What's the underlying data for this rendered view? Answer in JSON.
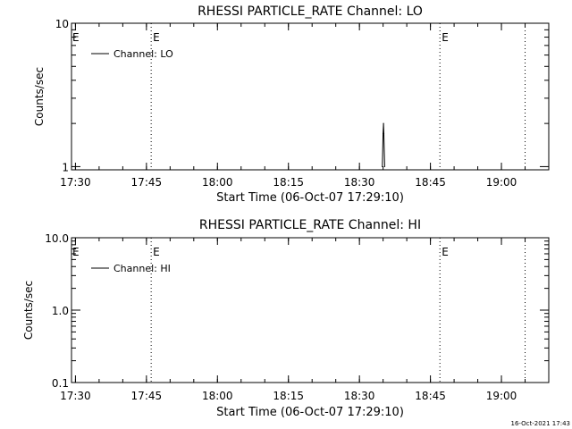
{
  "chart_data": [
    {
      "type": "line",
      "title": "RHESSI PARTICLE_RATE Channel: LO",
      "xlabel": "Start Time (06-Oct-07 17:29:10)",
      "ylabel": "Counts/sec",
      "yscale": "log",
      "ylim": [
        0.95,
        10
      ],
      "y_ticks": [
        {
          "value": 10,
          "label": "10"
        },
        {
          "value": 1,
          "label": "1"
        }
      ],
      "legend": {
        "placement": "top-left",
        "label": "Channel: LO"
      },
      "event_markers": [
        {
          "time": "17:46",
          "label": "E"
        },
        {
          "time": "18:47",
          "label": "E"
        },
        {
          "time": "19:05",
          "label": ""
        }
      ],
      "series": [
        {
          "name": "Channel: LO",
          "x": [
            "18:34:50",
            "18:35:00",
            "18:35:05",
            "18:35:10",
            "18:35:20"
          ],
          "values": [
            1,
            1.7,
            2.0,
            1.7,
            1
          ]
        }
      ]
    },
    {
      "type": "line",
      "title": "RHESSI PARTICLE_RATE Channel: HI",
      "xlabel": "Start Time (06-Oct-07 17:29:10)",
      "ylabel": "Counts/sec",
      "yscale": "log",
      "ylim": [
        0.1,
        10
      ],
      "y_ticks": [
        {
          "value": 10,
          "label": "10.0"
        },
        {
          "value": 1,
          "label": "1.0"
        },
        {
          "value": 0.1,
          "label": "0.1"
        }
      ],
      "legend": {
        "placement": "top-left",
        "label": "Channel: HI"
      },
      "event_markers": [
        {
          "time": "17:46",
          "label": "E"
        },
        {
          "time": "18:47",
          "label": "E"
        },
        {
          "time": "19:05",
          "label": ""
        }
      ],
      "series": [
        {
          "name": "Channel: HI",
          "x": [],
          "values": []
        }
      ]
    }
  ],
  "x_axis": {
    "start_time": "17:29:10",
    "end_time": "19:10:00",
    "tick_labels": [
      "17:30",
      "17:45",
      "18:00",
      "18:15",
      "18:30",
      "18:45",
      "19:00"
    ],
    "edge_marker_labels": [
      "E",
      "E"
    ]
  },
  "footer": {
    "timestamp": "16-Oct-2021 17:43"
  }
}
